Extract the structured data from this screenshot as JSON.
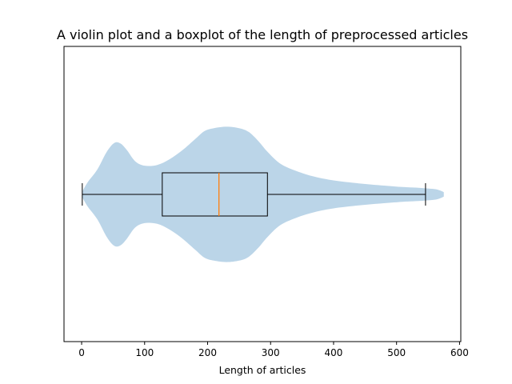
{
  "chart_data": {
    "type": "violin+boxplot",
    "orientation": "horizontal",
    "title": "A violin plot and a boxplot of the length of preprocessed articles",
    "xlabel": "Length of articles",
    "ylabel": "",
    "xlim": [
      -28,
      602
    ],
    "xticks": [
      0,
      100,
      200,
      300,
      400,
      500,
      600
    ],
    "xtick_labels": [
      "0",
      "100",
      "200",
      "300",
      "400",
      "500",
      "600"
    ],
    "yticks": [],
    "grid": false,
    "boxplot": {
      "whisker_low": 1,
      "q1": 128,
      "median": 218,
      "q3": 295,
      "whisker_high": 546,
      "outliers": []
    },
    "violin": {
      "min": 1,
      "max": 575,
      "density_profile": [
        {
          "x": 1,
          "w": 0.04
        },
        {
          "x": 10,
          "w": 0.17
        },
        {
          "x": 25,
          "w": 0.34
        },
        {
          "x": 40,
          "w": 0.58
        },
        {
          "x": 52,
          "w": 0.7
        },
        {
          "x": 62,
          "w": 0.69
        },
        {
          "x": 72,
          "w": 0.6
        },
        {
          "x": 85,
          "w": 0.45
        },
        {
          "x": 100,
          "w": 0.39
        },
        {
          "x": 120,
          "w": 0.4
        },
        {
          "x": 140,
          "w": 0.48
        },
        {
          "x": 160,
          "w": 0.6
        },
        {
          "x": 180,
          "w": 0.75
        },
        {
          "x": 195,
          "w": 0.86
        },
        {
          "x": 210,
          "w": 0.9
        },
        {
          "x": 230,
          "w": 0.92
        },
        {
          "x": 250,
          "w": 0.9
        },
        {
          "x": 265,
          "w": 0.85
        },
        {
          "x": 280,
          "w": 0.73
        },
        {
          "x": 295,
          "w": 0.58
        },
        {
          "x": 315,
          "w": 0.42
        },
        {
          "x": 340,
          "w": 0.32
        },
        {
          "x": 370,
          "w": 0.24
        },
        {
          "x": 400,
          "w": 0.19
        },
        {
          "x": 440,
          "w": 0.15
        },
        {
          "x": 480,
          "w": 0.12
        },
        {
          "x": 510,
          "w": 0.1
        },
        {
          "x": 535,
          "w": 0.09
        },
        {
          "x": 550,
          "w": 0.08
        },
        {
          "x": 562,
          "w": 0.07
        },
        {
          "x": 570,
          "w": 0.05
        },
        {
          "x": 575,
          "w": 0.03
        }
      ]
    },
    "colors": {
      "violin_fill": "#bbd5e8",
      "box_edge": "#000000",
      "median_line": "#ff7f0e"
    }
  }
}
